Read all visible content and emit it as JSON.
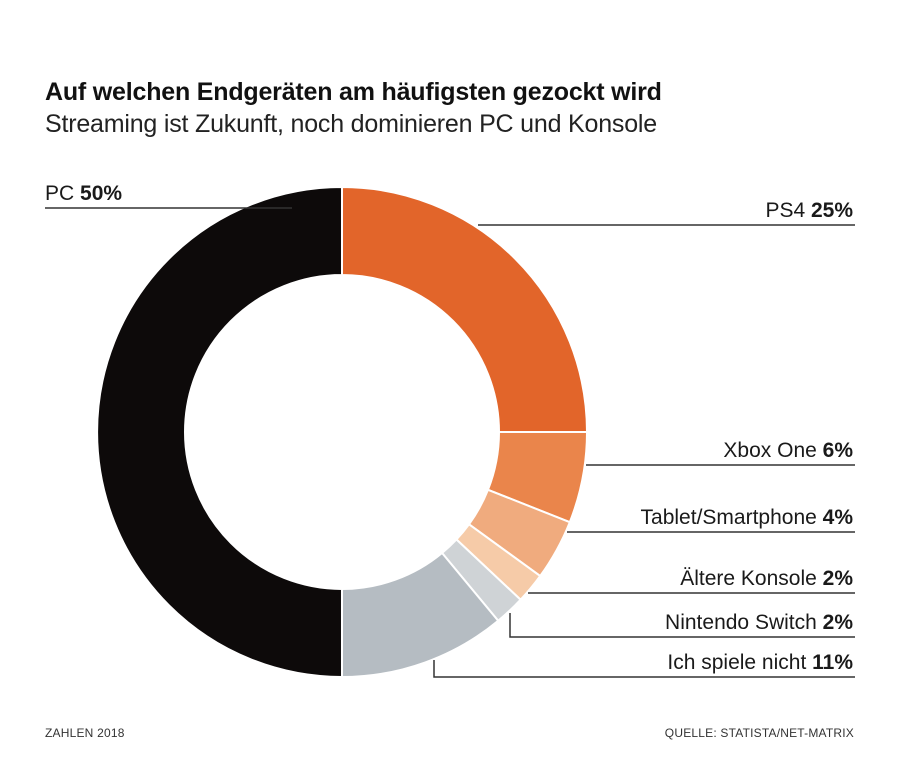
{
  "chart_data": {
    "type": "pie",
    "variant": "donut",
    "title": "Auf welchen Endgeräten am häufigsten gezockt wird",
    "subtitle": "Streaming ist Zukunft, noch dominieren PC und Konsole",
    "slices": [
      {
        "label": "PS4",
        "value": 25,
        "display": "25%",
        "color": "#e2652a"
      },
      {
        "label": "Xbox One",
        "value": 6,
        "display": "6%",
        "color": "#ea854b"
      },
      {
        "label": "Tablet/Smartphone",
        "value": 4,
        "display": "4%",
        "color": "#f0ab7e"
      },
      {
        "label": "Ältere Konsole",
        "value": 2,
        "display": "2%",
        "color": "#f6cba8"
      },
      {
        "label": "Nintendo Switch",
        "value": 2,
        "display": "2%",
        "color": "#cfd3d6"
      },
      {
        "label": "Ich spiele nicht",
        "value": 11,
        "display": "11%",
        "color": "#b5bcc2"
      },
      {
        "label": "PC",
        "value": 50,
        "display": "50%",
        "color": "#0d0a0a"
      }
    ]
  },
  "footer": {
    "left": "ZAHLEN 2018",
    "right": "QUELLE: STATISTA/NET-MATRIX"
  }
}
